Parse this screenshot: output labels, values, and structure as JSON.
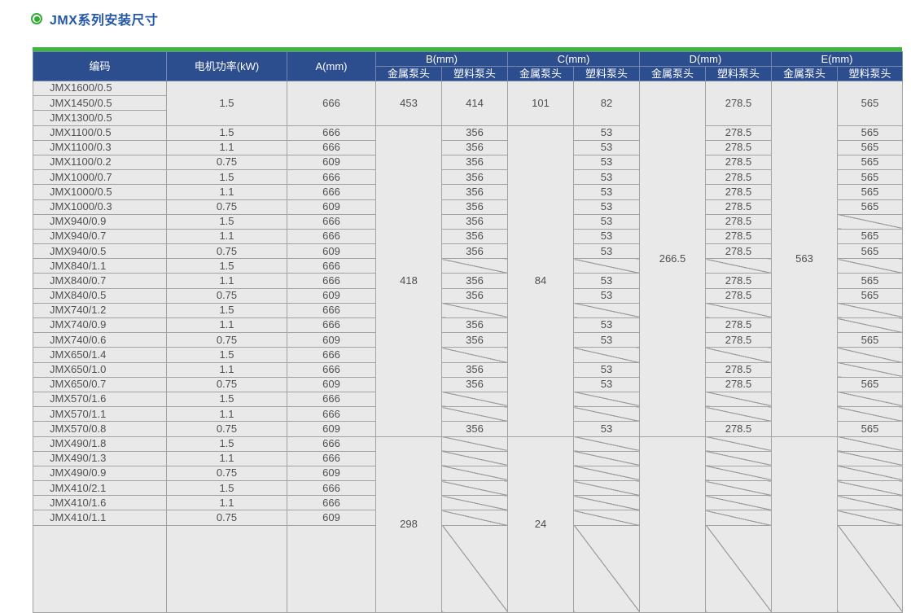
{
  "page": {
    "section_title": "JMX系列安装尺寸"
  },
  "colors": {
    "accent_green": "#3eb53e",
    "header_blue": "#2c4d8e",
    "title_blue": "#2457a8",
    "body_cell_bg": "#e9e9e9",
    "grid_line": "#a2a2a2",
    "body_text": "#4f4f4f"
  },
  "table": {
    "header": {
      "code": "编码",
      "power": "电机功率(kW)",
      "a": "A(mm)",
      "groups": [
        {
          "label": "B(mm)"
        },
        {
          "label": "C(mm)"
        },
        {
          "label": "D(mm)"
        },
        {
          "label": "E(mm)"
        }
      ],
      "sub_metal": "金属泵头",
      "sub_plastic": "塑料泵头"
    },
    "slash_marker": "/",
    "merged_cells": [
      {
        "col": "power",
        "row": 0,
        "span": 3,
        "value": "1.5"
      },
      {
        "col": "a",
        "row": 0,
        "span": 3,
        "value": "666"
      },
      {
        "col": "b_metal",
        "row": 0,
        "span": 3,
        "value": "453"
      },
      {
        "col": "b_plastic",
        "row": 0,
        "span": 3,
        "value": "414"
      },
      {
        "col": "c_metal",
        "row": 0,
        "span": 3,
        "value": "101"
      },
      {
        "col": "c_plastic",
        "row": 0,
        "span": 3,
        "value": "82"
      },
      {
        "col": "d_plastic",
        "row": 0,
        "span": 3,
        "value": "278.5"
      },
      {
        "col": "e_plastic",
        "row": 0,
        "span": 3,
        "value": "565"
      },
      {
        "col": "d_metal",
        "row": 0,
        "span": 24,
        "value": "266.5"
      },
      {
        "col": "e_metal",
        "row": 0,
        "span": 24,
        "value": "563"
      },
      {
        "col": "b_metal",
        "row": 3,
        "span": 21,
        "value": "418"
      },
      {
        "col": "c_metal",
        "row": 3,
        "span": 21,
        "value": "84"
      },
      {
        "col": "b_metal",
        "row": 24,
        "span": 7,
        "value": "298"
      },
      {
        "col": "c_metal",
        "row": 24,
        "span": 7,
        "value": "24"
      },
      {
        "col": "d_metal",
        "row": 24,
        "span": 7,
        "value": ""
      },
      {
        "col": "e_metal",
        "row": 24,
        "span": 7,
        "value": ""
      }
    ],
    "rows": [
      {
        "code": "JMX1600/0.5"
      },
      {
        "code": "JMX1450/0.5"
      },
      {
        "code": "JMX1300/0.5"
      },
      {
        "code": "JMX1100/0.5",
        "power": "1.5",
        "a": "666",
        "b_plastic": "356",
        "c_plastic": "53",
        "d_plastic": "278.5",
        "e_plastic": "565"
      },
      {
        "code": "JMX1100/0.3",
        "power": "1.1",
        "a": "666",
        "b_plastic": "356",
        "c_plastic": "53",
        "d_plastic": "278.5",
        "e_plastic": "565"
      },
      {
        "code": "JMX1100/0.2",
        "power": "0.75",
        "a": "609",
        "b_plastic": "356",
        "c_plastic": "53",
        "d_plastic": "278.5",
        "e_plastic": "565"
      },
      {
        "code": "JMX1000/0.7",
        "power": "1.5",
        "a": "666",
        "b_plastic": "356",
        "c_plastic": "53",
        "d_plastic": "278.5",
        "e_plastic": "565"
      },
      {
        "code": "JMX1000/0.5",
        "power": "1.1",
        "a": "666",
        "b_plastic": "356",
        "c_plastic": "53",
        "d_plastic": "278.5",
        "e_plastic": "565"
      },
      {
        "code": "JMX1000/0.3",
        "power": "0.75",
        "a": "609",
        "b_plastic": "356",
        "c_plastic": "53",
        "d_plastic": "278.5",
        "e_plastic": "565"
      },
      {
        "code": "JMX940/0.9",
        "power": "1.5",
        "a": "666",
        "b_plastic": "356",
        "c_plastic": "53",
        "d_plastic": "278.5",
        "e_plastic": "/"
      },
      {
        "code": "JMX940/0.7",
        "power": "1.1",
        "a": "666",
        "b_plastic": "356",
        "c_plastic": "53",
        "d_plastic": "278.5",
        "e_plastic": "565"
      },
      {
        "code": "JMX940/0.5",
        "power": "0.75",
        "a": "609",
        "b_plastic": "356",
        "c_plastic": "53",
        "d_plastic": "278.5",
        "e_plastic": "565"
      },
      {
        "code": "JMX840/1.1",
        "power": "1.5",
        "a": "666",
        "b_plastic": "/",
        "c_plastic": "/",
        "d_plastic": "/",
        "e_plastic": "/"
      },
      {
        "code": "JMX840/0.7",
        "power": "1.1",
        "a": "666",
        "b_plastic": "356",
        "c_plastic": "53",
        "d_plastic": "278.5",
        "e_plastic": "565"
      },
      {
        "code": "JMX840/0.5",
        "power": "0.75",
        "a": "609",
        "b_plastic": "356",
        "c_plastic": "53",
        "d_plastic": "278.5",
        "e_plastic": "565"
      },
      {
        "code": "JMX740/1.2",
        "power": "1.5",
        "a": "666",
        "b_plastic": "/",
        "c_plastic": "/",
        "d_plastic": "/",
        "e_plastic": "/"
      },
      {
        "code": "JMX740/0.9",
        "power": "1.1",
        "a": "666",
        "b_plastic": "356",
        "c_plastic": "53",
        "d_plastic": "278.5",
        "e_plastic": "/"
      },
      {
        "code": "JMX740/0.6",
        "power": "0.75",
        "a": "609",
        "b_plastic": "356",
        "c_plastic": "53",
        "d_plastic": "278.5",
        "e_plastic": "565"
      },
      {
        "code": "JMX650/1.4",
        "power": "1.5",
        "a": "666",
        "b_plastic": "/",
        "c_plastic": "/",
        "d_plastic": "/",
        "e_plastic": "/"
      },
      {
        "code": "JMX650/1.0",
        "power": "1.1",
        "a": "666",
        "b_plastic": "356",
        "c_plastic": "53",
        "d_plastic": "278.5",
        "e_plastic": "/"
      },
      {
        "code": "JMX650/0.7",
        "power": "0.75",
        "a": "609",
        "b_plastic": "356",
        "c_plastic": "53",
        "d_plastic": "278.5",
        "e_plastic": "565"
      },
      {
        "code": "JMX570/1.6",
        "power": "1.5",
        "a": "666",
        "b_plastic": "/",
        "c_plastic": "/",
        "d_plastic": "/",
        "e_plastic": "/"
      },
      {
        "code": "JMX570/1.1",
        "power": "1.1",
        "a": "666",
        "b_plastic": "/",
        "c_plastic": "/",
        "d_plastic": "/",
        "e_plastic": "/"
      },
      {
        "code": "JMX570/0.8",
        "power": "0.75",
        "a": "609",
        "b_plastic": "356",
        "c_plastic": "53",
        "d_plastic": "278.5",
        "e_plastic": "565"
      },
      {
        "code": "JMX490/1.8",
        "power": "1.5",
        "a": "666",
        "b_plastic": "/",
        "c_plastic": "/",
        "d_plastic": "/",
        "e_plastic": "/"
      },
      {
        "code": "JMX490/1.3",
        "power": "1.1",
        "a": "666",
        "b_plastic": "/",
        "c_plastic": "/",
        "d_plastic": "/",
        "e_plastic": "/"
      },
      {
        "code": "JMX490/0.9",
        "power": "0.75",
        "a": "609",
        "b_plastic": "/",
        "c_plastic": "/",
        "d_plastic": "/",
        "e_plastic": "/"
      },
      {
        "code": "JMX410/2.1",
        "power": "1.5",
        "a": "666",
        "b_plastic": "/",
        "c_plastic": "/",
        "d_plastic": "/",
        "e_plastic": "/"
      },
      {
        "code": "JMX410/1.6",
        "power": "1.1",
        "a": "666",
        "b_plastic": "/",
        "c_plastic": "/",
        "d_plastic": "/",
        "e_plastic": "/"
      },
      {
        "code": "JMX410/1.1",
        "power": "0.75",
        "a": "609",
        "b_plastic": "/",
        "c_plastic": "/",
        "d_plastic": "/",
        "e_plastic": "/"
      },
      {
        "code": "",
        "power": "",
        "a": "",
        "b_plastic": "/",
        "c_plastic": "/",
        "d_plastic": "/",
        "e_plastic": "/"
      }
    ]
  }
}
